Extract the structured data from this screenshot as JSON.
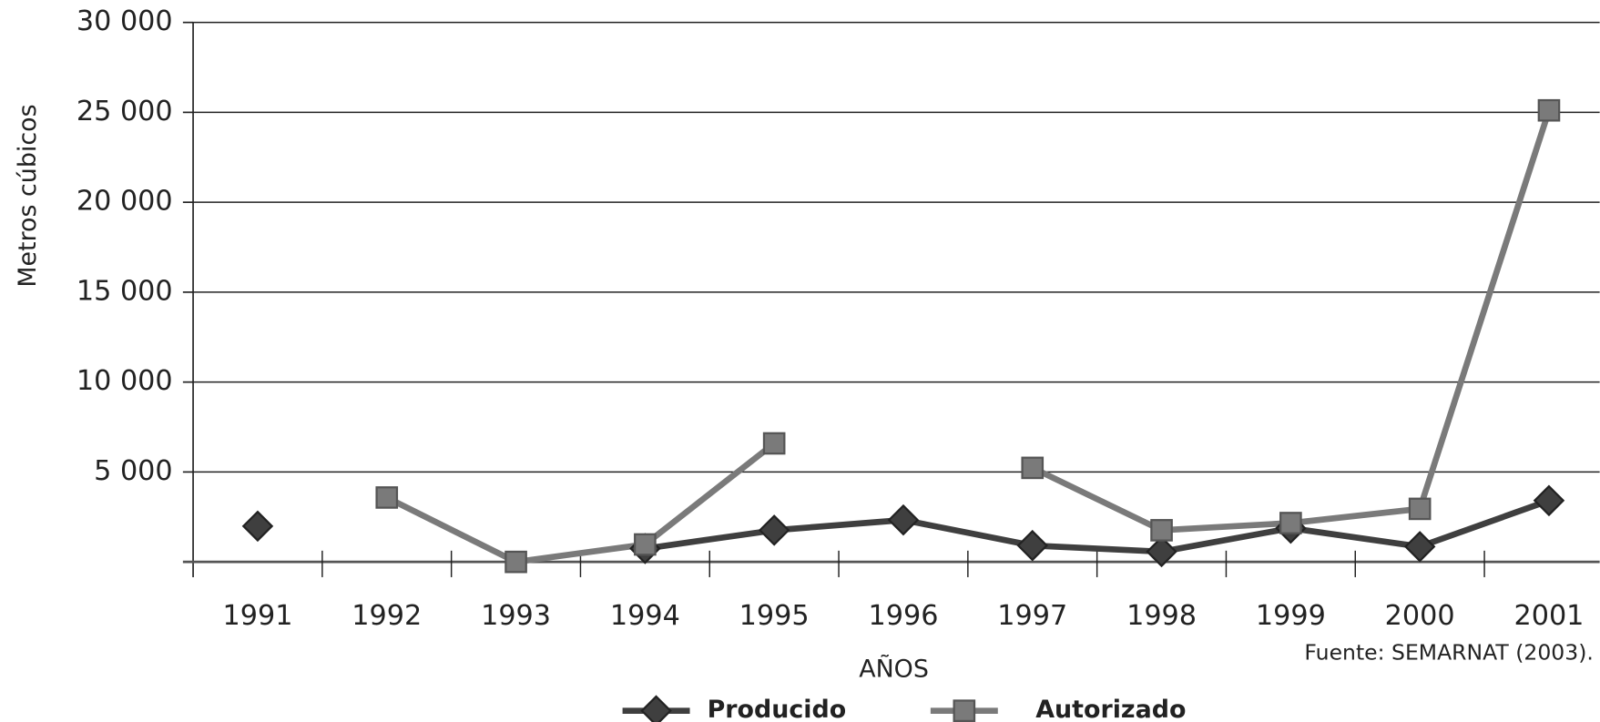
{
  "chart_data": {
    "type": "line",
    "y_label": "Metros cúbicos",
    "x_label": "AÑOS",
    "source": "Fuente:  SEMARNAT (2003).",
    "categories": [
      "1991",
      "1992",
      "1993",
      "1994",
      "1995",
      "1996",
      "1997",
      "1998",
      "1999",
      "2000",
      "2001"
    ],
    "series": [
      {
        "name": "Producido",
        "color": "#3f3f3f",
        "marker": "diamond",
        "values": [
          1990,
          null,
          null,
          740,
          1760,
          2330,
          910,
          570,
          1875,
          850,
          3410
        ]
      },
      {
        "name": "Autorizado",
        "color": "#7a7a7a",
        "marker": "square",
        "values": [
          null,
          3580,
          0,
          970,
          6590,
          null,
          5230,
          1760,
          2160,
          2950,
          25110
        ]
      }
    ],
    "ylim": [
      0,
      30000
    ],
    "yticks": [
      {
        "value": 5000,
        "label": "5 000"
      },
      {
        "value": 10000,
        "label": "10 000"
      },
      {
        "value": 15000,
        "label": "15 000"
      },
      {
        "value": 20000,
        "label": "20 000"
      },
      {
        "value": 25000,
        "label": "25 000"
      },
      {
        "value": 30000,
        "label": "30 000"
      }
    ],
    "grid": true
  }
}
